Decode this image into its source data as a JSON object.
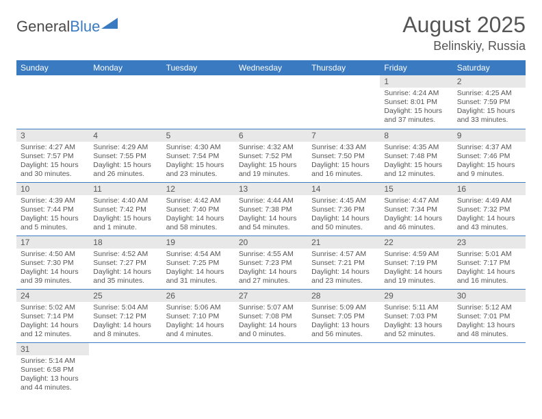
{
  "logo": {
    "general": "General",
    "blue": "Blue"
  },
  "title": "August 2025",
  "location": "Belinskiy, Russia",
  "colors": {
    "accent": "#3a7ac0",
    "dayHeaderBg": "#e8e8e8",
    "text": "#555555"
  },
  "dayNames": [
    "Sunday",
    "Monday",
    "Tuesday",
    "Wednesday",
    "Thursday",
    "Friday",
    "Saturday"
  ],
  "weeks": [
    [
      null,
      null,
      null,
      null,
      null,
      {
        "n": "1",
        "sr": "Sunrise: 4:24 AM",
        "ss": "Sunset: 8:01 PM",
        "dl1": "Daylight: 15 hours",
        "dl2": "and 37 minutes."
      },
      {
        "n": "2",
        "sr": "Sunrise: 4:25 AM",
        "ss": "Sunset: 7:59 PM",
        "dl1": "Daylight: 15 hours",
        "dl2": "and 33 minutes."
      }
    ],
    [
      {
        "n": "3",
        "sr": "Sunrise: 4:27 AM",
        "ss": "Sunset: 7:57 PM",
        "dl1": "Daylight: 15 hours",
        "dl2": "and 30 minutes."
      },
      {
        "n": "4",
        "sr": "Sunrise: 4:29 AM",
        "ss": "Sunset: 7:55 PM",
        "dl1": "Daylight: 15 hours",
        "dl2": "and 26 minutes."
      },
      {
        "n": "5",
        "sr": "Sunrise: 4:30 AM",
        "ss": "Sunset: 7:54 PM",
        "dl1": "Daylight: 15 hours",
        "dl2": "and 23 minutes."
      },
      {
        "n": "6",
        "sr": "Sunrise: 4:32 AM",
        "ss": "Sunset: 7:52 PM",
        "dl1": "Daylight: 15 hours",
        "dl2": "and 19 minutes."
      },
      {
        "n": "7",
        "sr": "Sunrise: 4:33 AM",
        "ss": "Sunset: 7:50 PM",
        "dl1": "Daylight: 15 hours",
        "dl2": "and 16 minutes."
      },
      {
        "n": "8",
        "sr": "Sunrise: 4:35 AM",
        "ss": "Sunset: 7:48 PM",
        "dl1": "Daylight: 15 hours",
        "dl2": "and 12 minutes."
      },
      {
        "n": "9",
        "sr": "Sunrise: 4:37 AM",
        "ss": "Sunset: 7:46 PM",
        "dl1": "Daylight: 15 hours",
        "dl2": "and 9 minutes."
      }
    ],
    [
      {
        "n": "10",
        "sr": "Sunrise: 4:39 AM",
        "ss": "Sunset: 7:44 PM",
        "dl1": "Daylight: 15 hours",
        "dl2": "and 5 minutes."
      },
      {
        "n": "11",
        "sr": "Sunrise: 4:40 AM",
        "ss": "Sunset: 7:42 PM",
        "dl1": "Daylight: 15 hours",
        "dl2": "and 1 minute."
      },
      {
        "n": "12",
        "sr": "Sunrise: 4:42 AM",
        "ss": "Sunset: 7:40 PM",
        "dl1": "Daylight: 14 hours",
        "dl2": "and 58 minutes."
      },
      {
        "n": "13",
        "sr": "Sunrise: 4:44 AM",
        "ss": "Sunset: 7:38 PM",
        "dl1": "Daylight: 14 hours",
        "dl2": "and 54 minutes."
      },
      {
        "n": "14",
        "sr": "Sunrise: 4:45 AM",
        "ss": "Sunset: 7:36 PM",
        "dl1": "Daylight: 14 hours",
        "dl2": "and 50 minutes."
      },
      {
        "n": "15",
        "sr": "Sunrise: 4:47 AM",
        "ss": "Sunset: 7:34 PM",
        "dl1": "Daylight: 14 hours",
        "dl2": "and 46 minutes."
      },
      {
        "n": "16",
        "sr": "Sunrise: 4:49 AM",
        "ss": "Sunset: 7:32 PM",
        "dl1": "Daylight: 14 hours",
        "dl2": "and 43 minutes."
      }
    ],
    [
      {
        "n": "17",
        "sr": "Sunrise: 4:50 AM",
        "ss": "Sunset: 7:30 PM",
        "dl1": "Daylight: 14 hours",
        "dl2": "and 39 minutes."
      },
      {
        "n": "18",
        "sr": "Sunrise: 4:52 AM",
        "ss": "Sunset: 7:27 PM",
        "dl1": "Daylight: 14 hours",
        "dl2": "and 35 minutes."
      },
      {
        "n": "19",
        "sr": "Sunrise: 4:54 AM",
        "ss": "Sunset: 7:25 PM",
        "dl1": "Daylight: 14 hours",
        "dl2": "and 31 minutes."
      },
      {
        "n": "20",
        "sr": "Sunrise: 4:55 AM",
        "ss": "Sunset: 7:23 PM",
        "dl1": "Daylight: 14 hours",
        "dl2": "and 27 minutes."
      },
      {
        "n": "21",
        "sr": "Sunrise: 4:57 AM",
        "ss": "Sunset: 7:21 PM",
        "dl1": "Daylight: 14 hours",
        "dl2": "and 23 minutes."
      },
      {
        "n": "22",
        "sr": "Sunrise: 4:59 AM",
        "ss": "Sunset: 7:19 PM",
        "dl1": "Daylight: 14 hours",
        "dl2": "and 19 minutes."
      },
      {
        "n": "23",
        "sr": "Sunrise: 5:01 AM",
        "ss": "Sunset: 7:17 PM",
        "dl1": "Daylight: 14 hours",
        "dl2": "and 16 minutes."
      }
    ],
    [
      {
        "n": "24",
        "sr": "Sunrise: 5:02 AM",
        "ss": "Sunset: 7:14 PM",
        "dl1": "Daylight: 14 hours",
        "dl2": "and 12 minutes."
      },
      {
        "n": "25",
        "sr": "Sunrise: 5:04 AM",
        "ss": "Sunset: 7:12 PM",
        "dl1": "Daylight: 14 hours",
        "dl2": "and 8 minutes."
      },
      {
        "n": "26",
        "sr": "Sunrise: 5:06 AM",
        "ss": "Sunset: 7:10 PM",
        "dl1": "Daylight: 14 hours",
        "dl2": "and 4 minutes."
      },
      {
        "n": "27",
        "sr": "Sunrise: 5:07 AM",
        "ss": "Sunset: 7:08 PM",
        "dl1": "Daylight: 14 hours",
        "dl2": "and 0 minutes."
      },
      {
        "n": "28",
        "sr": "Sunrise: 5:09 AM",
        "ss": "Sunset: 7:05 PM",
        "dl1": "Daylight: 13 hours",
        "dl2": "and 56 minutes."
      },
      {
        "n": "29",
        "sr": "Sunrise: 5:11 AM",
        "ss": "Sunset: 7:03 PM",
        "dl1": "Daylight: 13 hours",
        "dl2": "and 52 minutes."
      },
      {
        "n": "30",
        "sr": "Sunrise: 5:12 AM",
        "ss": "Sunset: 7:01 PM",
        "dl1": "Daylight: 13 hours",
        "dl2": "and 48 minutes."
      }
    ],
    [
      {
        "n": "31",
        "sr": "Sunrise: 5:14 AM",
        "ss": "Sunset: 6:58 PM",
        "dl1": "Daylight: 13 hours",
        "dl2": "and 44 minutes."
      },
      null,
      null,
      null,
      null,
      null,
      null
    ]
  ]
}
